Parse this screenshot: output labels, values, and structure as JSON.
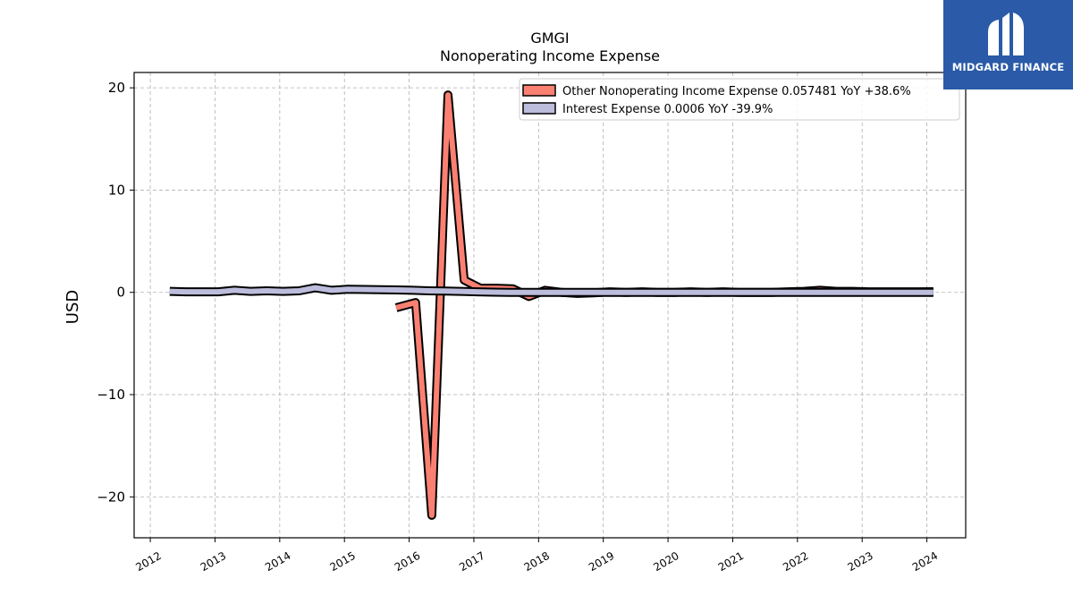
{
  "chart_data": {
    "type": "line",
    "title": "GMGI",
    "subtitle": "Nonoperating Income Expense",
    "ylabel": "USD",
    "xlabel": "",
    "xlim": [
      2011.75,
      2024.6
    ],
    "ylim": [
      -24,
      21.5
    ],
    "yticks": [
      -20,
      -10,
      0,
      10,
      20
    ],
    "ytick_labels": [
      "−20",
      "−10",
      "0",
      "10",
      "20"
    ],
    "xticks": [
      2012,
      2013,
      2014,
      2015,
      2016,
      2017,
      2018,
      2019,
      2020,
      2021,
      2022,
      2023,
      2024
    ],
    "xtick_labels": [
      "2012",
      "2013",
      "2014",
      "2015",
      "2016",
      "2017",
      "2018",
      "2019",
      "2020",
      "2021",
      "2022",
      "2023",
      "2024"
    ],
    "grid": true,
    "legend_position": "top-right",
    "series": [
      {
        "name": "Other Nonoperating Income Expense  0.057481 YoY +38.6%",
        "color": "#fa8072",
        "x": [
          2015.8,
          2016.1,
          2016.35,
          2016.6,
          2016.85,
          2017.1,
          2017.35,
          2017.6,
          2017.85,
          2018.1,
          2018.35,
          2018.6,
          2018.85,
          2019.1,
          2019.35,
          2019.6,
          2019.85,
          2020.1,
          2020.35,
          2020.6,
          2020.85,
          2021.1,
          2021.35,
          2021.6,
          2021.85,
          2022.1,
          2022.35,
          2022.6,
          2022.85,
          2023.1,
          2023.35,
          2023.6,
          2023.85,
          2024.1
        ],
        "values": [
          -1.5,
          -1.0,
          -21.8,
          19.3,
          1.2,
          0.4,
          0.4,
          0.35,
          -0.4,
          0.2,
          0.0,
          -0.1,
          -0.05,
          0.05,
          0.0,
          0.05,
          0.0,
          0.0,
          0.05,
          0.0,
          0.05,
          0.0,
          0.0,
          0.0,
          0.05,
          0.1,
          0.2,
          0.1,
          0.1,
          0.05,
          0.05,
          0.05,
          0.05,
          0.06
        ]
      },
      {
        "name": "Interest Expense  0.0006 YoY -39.9%",
        "color": "#bcbddc",
        "x": [
          2012.3,
          2012.55,
          2012.8,
          2013.05,
          2013.3,
          2013.55,
          2013.8,
          2014.05,
          2014.3,
          2014.55,
          2014.8,
          2015.05,
          2015.3,
          2015.55,
          2015.8,
          2016.05,
          2016.3,
          2016.55,
          2016.8,
          2017.05,
          2017.3,
          2017.55,
          2017.8,
          2018.05,
          2018.3,
          2018.55,
          2018.8,
          2019.05,
          2019.3,
          2019.55,
          2019.8,
          2020.05,
          2020.3,
          2020.55,
          2020.8,
          2021.05,
          2021.3,
          2021.55,
          2021.8,
          2022.05,
          2022.3,
          2022.55,
          2022.8,
          2023.05,
          2023.3,
          2023.55,
          2023.8,
          2024.1
        ],
        "values": [
          0.1,
          0.05,
          0.05,
          0.05,
          0.2,
          0.1,
          0.15,
          0.1,
          0.15,
          0.45,
          0.2,
          0.3,
          0.28,
          0.26,
          0.24,
          0.2,
          0.15,
          0.12,
          0.1,
          0.05,
          0.02,
          0.0,
          0.0,
          0.0,
          0.0,
          0.0,
          0.0,
          0.0,
          0.0,
          0.0,
          0.0,
          0.0,
          0.0,
          0.0,
          0.0,
          0.0,
          0.0,
          0.0,
          0.0,
          0.0,
          0.0,
          0.0,
          0.0,
          0.0,
          0.0,
          0.0,
          0.0,
          0.0
        ]
      }
    ]
  },
  "logo": {
    "text": "MIDGARD FINANCE",
    "background": "#2a5aa8"
  }
}
